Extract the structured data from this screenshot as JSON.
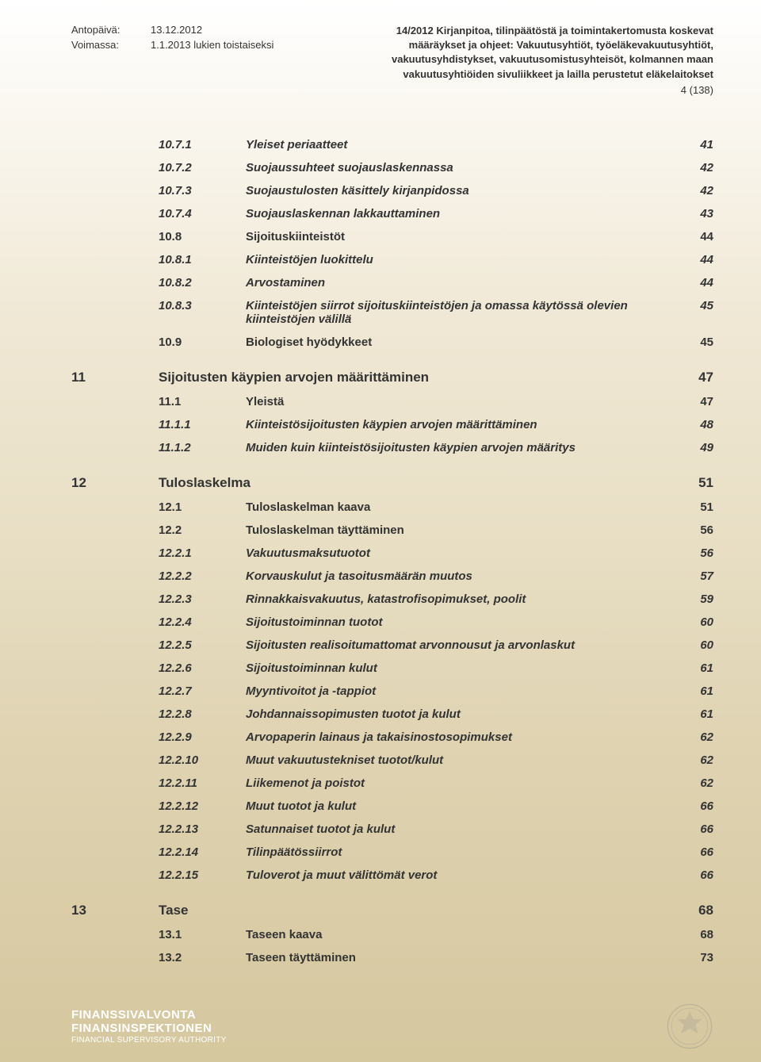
{
  "header": {
    "left": [
      {
        "label": "Antopäivä:",
        "value": "13.12.2012"
      },
      {
        "label": "Voimassa:",
        "value": "1.1.2013 lukien toistaiseksi"
      }
    ],
    "right_lines": [
      "14/2012 Kirjanpitoa, tilinpäätöstä ja toimintakertomusta koskevat",
      "määräykset ja ohjeet: Vakuutusyhtiöt, työeläkevakuutusyhtiöt,",
      "vakuutusyhdistykset, vakuutusomistusyhteisöt, kolmannen maan",
      "vakuutusyhtiöiden sivuliikkeet ja lailla perustetut eläkelaitokset"
    ],
    "page_ref": "4 (138)"
  },
  "toc": [
    {
      "type": "item",
      "num": "10.7.1",
      "title": "Yleiset periaatteet",
      "page": "41",
      "italic": true
    },
    {
      "type": "item",
      "num": "10.7.2",
      "title": "Suojaussuhteet suojauslaskennassa",
      "page": "42",
      "italic": true
    },
    {
      "type": "item",
      "num": "10.7.3",
      "title": "Suojaustulosten käsittely kirjanpidossa",
      "page": "42",
      "italic": true
    },
    {
      "type": "item",
      "num": "10.7.4",
      "title": "Suojauslaskennan lakkauttaminen",
      "page": "43",
      "italic": true
    },
    {
      "type": "item",
      "num": "10.8",
      "title": "Sijoituskiinteistöt",
      "page": "44",
      "italic": false
    },
    {
      "type": "item",
      "num": "10.8.1",
      "title": "Kiinteistöjen luokittelu",
      "page": "44",
      "italic": true
    },
    {
      "type": "item",
      "num": "10.8.2",
      "title": "Arvostaminen",
      "page": "44",
      "italic": true
    },
    {
      "type": "item",
      "num": "10.8.3",
      "title": "Kiinteistöjen siirrot sijoituskiinteistöjen ja omassa käytössä olevien kiinteistöjen välillä",
      "page": "45",
      "italic": true
    },
    {
      "type": "item",
      "num": "10.9",
      "title": "Biologiset hyödykkeet",
      "page": "45",
      "italic": false
    },
    {
      "type": "gap"
    },
    {
      "type": "chapter",
      "chapter": "11",
      "title": "Sijoitusten käypien arvojen määrittäminen",
      "page": "47"
    },
    {
      "type": "item",
      "num": "11.1",
      "title": "Yleistä",
      "page": "47",
      "italic": false
    },
    {
      "type": "item",
      "num": "11.1.1",
      "title": "Kiinteistösijoitusten käypien arvojen määrittäminen",
      "page": "48",
      "italic": true
    },
    {
      "type": "item",
      "num": "11.1.2",
      "title": "Muiden kuin kiinteistösijoitusten käypien arvojen määritys",
      "page": "49",
      "italic": true
    },
    {
      "type": "gap"
    },
    {
      "type": "chapter",
      "chapter": "12",
      "title": "Tuloslaskelma",
      "page": "51"
    },
    {
      "type": "item",
      "num": "12.1",
      "title": "Tuloslaskelman kaava",
      "page": "51",
      "italic": false
    },
    {
      "type": "item",
      "num": "12.2",
      "title": "Tuloslaskelman täyttäminen",
      "page": "56",
      "italic": false
    },
    {
      "type": "item",
      "num": "12.2.1",
      "title": "Vakuutusmaksutuotot",
      "page": "56",
      "italic": true
    },
    {
      "type": "item",
      "num": "12.2.2",
      "title": "Korvauskulut ja tasoitusmäärän muutos",
      "page": "57",
      "italic": true
    },
    {
      "type": "item",
      "num": "12.2.3",
      "title": "Rinnakkaisvakuutus, katastrofisopimukset, poolit",
      "page": "59",
      "italic": true
    },
    {
      "type": "item",
      "num": "12.2.4",
      "title": "Sijoitustoiminnan tuotot",
      "page": "60",
      "italic": true
    },
    {
      "type": "item",
      "num": "12.2.5",
      "title": "Sijoitusten realisoitumattomat arvonnousut ja arvonlaskut",
      "page": "60",
      "italic": true
    },
    {
      "type": "item",
      "num": "12.2.6",
      "title": "Sijoitustoiminnan kulut",
      "page": "61",
      "italic": true
    },
    {
      "type": "item",
      "num": "12.2.7",
      "title": "Myyntivoitot ja -tappiot",
      "page": "61",
      "italic": true
    },
    {
      "type": "item",
      "num": "12.2.8",
      "title": "Johdannaissopimusten tuotot ja kulut",
      "page": "61",
      "italic": true
    },
    {
      "type": "item",
      "num": "12.2.9",
      "title": "Arvopaperin lainaus ja takaisinostosopimukset",
      "page": "62",
      "italic": true
    },
    {
      "type": "item",
      "num": "12.2.10",
      "title": "Muut vakuutustekniset tuotot/kulut",
      "page": "62",
      "italic": true
    },
    {
      "type": "item",
      "num": "12.2.11",
      "title": "Liikemenot ja poistot",
      "page": "62",
      "italic": true
    },
    {
      "type": "item",
      "num": "12.2.12",
      "title": "Muut tuotot ja kulut",
      "page": "66",
      "italic": true
    },
    {
      "type": "item",
      "num": "12.2.13",
      "title": "Satunnaiset tuotot ja kulut",
      "page": "66",
      "italic": true
    },
    {
      "type": "item",
      "num": "12.2.14",
      "title": "Tilinpäätössiirrot",
      "page": "66",
      "italic": true
    },
    {
      "type": "item",
      "num": "12.2.15",
      "title": "Tuloverot ja muut välittömät verot",
      "page": "66",
      "italic": true
    },
    {
      "type": "gap"
    },
    {
      "type": "chapter",
      "chapter": "13",
      "title": "Tase",
      "page": "68"
    },
    {
      "type": "item",
      "num": "13.1",
      "title": "Taseen kaava",
      "page": "68",
      "italic": false
    },
    {
      "type": "item",
      "num": "13.2",
      "title": "Taseen täyttäminen",
      "page": "73",
      "italic": false
    }
  ],
  "footer": {
    "line1": "FINANSSIVALVONTA",
    "line2": "FINANSINSPEKTIONEN",
    "line3": "FINANCIAL SUPERVISORY AUTHORITY"
  }
}
